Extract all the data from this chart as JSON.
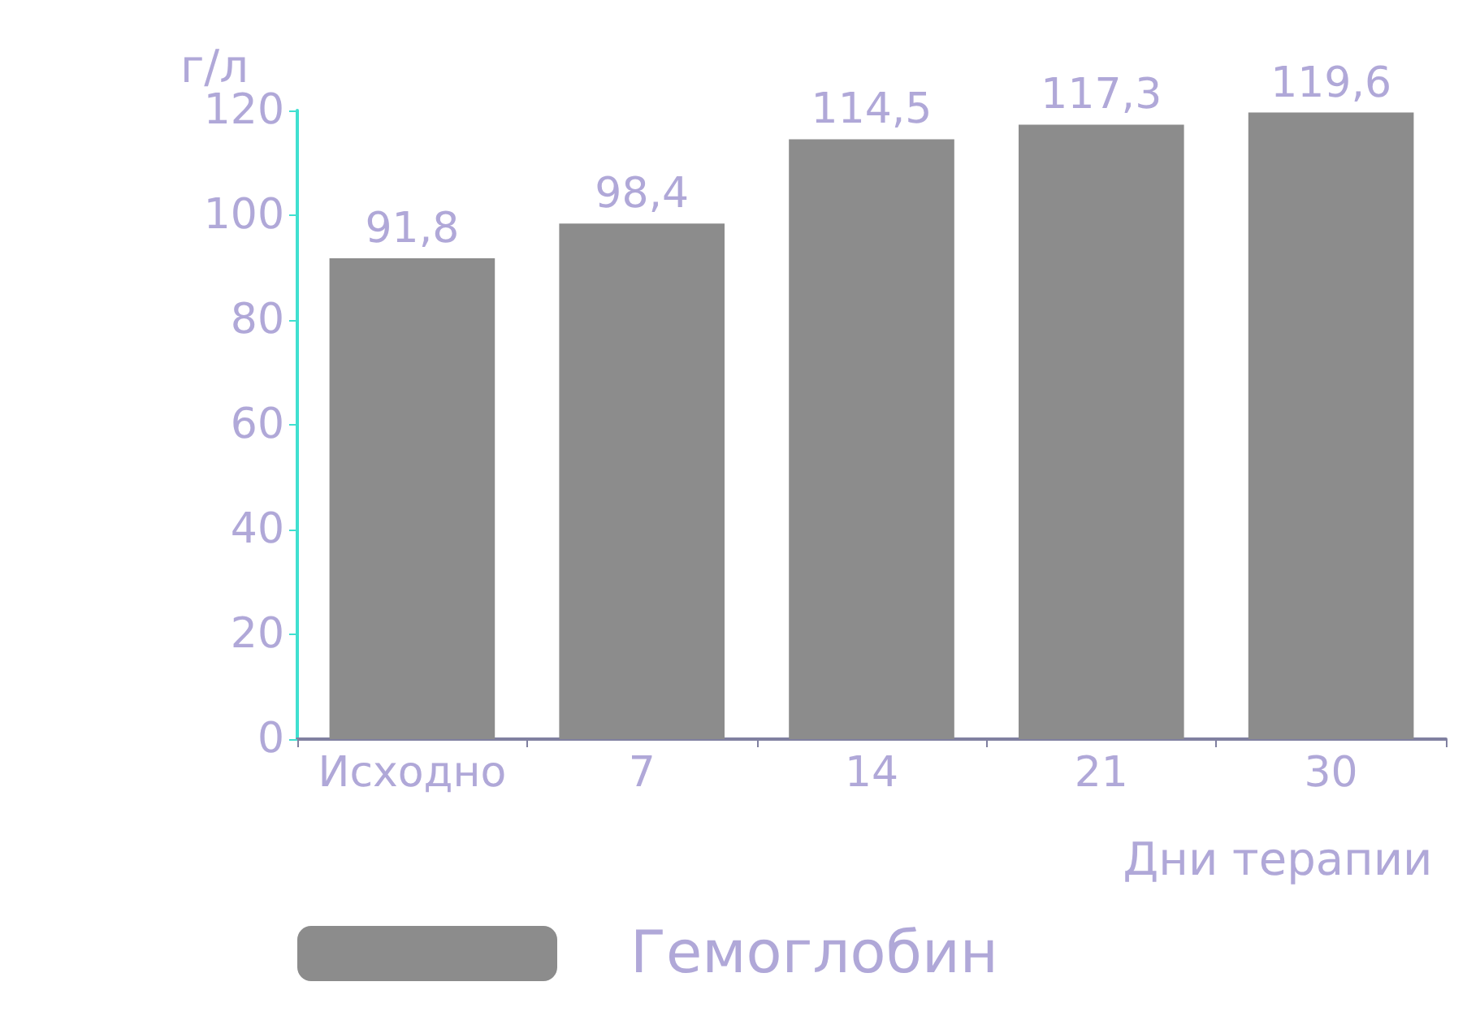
{
  "chart_data": {
    "type": "bar",
    "ylabel": "г/л",
    "xlabel": "Дни терапии",
    "categories": [
      "Исходно",
      "7",
      "14",
      "21",
      "30"
    ],
    "series": [
      {
        "name": "Гемоглобин",
        "color": "#8c8c8c",
        "values": [
          91.8,
          98.4,
          114.5,
          117.3,
          119.6
        ],
        "value_labels": [
          "91,8",
          "98,4",
          "114,5",
          "117,3",
          "119,6"
        ]
      }
    ],
    "ylim": [
      0,
      120
    ],
    "yticks": [
      0,
      20,
      40,
      60,
      80,
      100,
      120
    ],
    "grid": false,
    "legend": "bottom"
  }
}
